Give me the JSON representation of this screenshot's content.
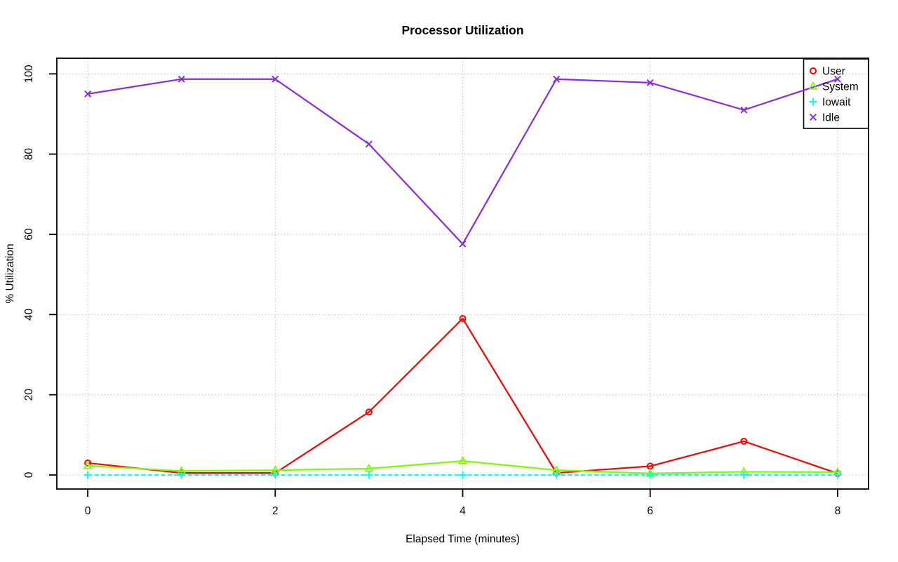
{
  "chart_data": {
    "type": "line",
    "title": "Processor Utilization",
    "xlabel": "Elapsed Time (minutes)",
    "ylabel": "% Utilization",
    "x": [
      0,
      1,
      2,
      3,
      4,
      5,
      6,
      7,
      8
    ],
    "xticks": [
      0,
      2,
      4,
      6,
      8
    ],
    "yticks": [
      0,
      20,
      40,
      60,
      80,
      100
    ],
    "xlim": [
      -0.33,
      8.33
    ],
    "ylim": [
      -3.5,
      103.9
    ],
    "grid": true,
    "grid_style": "dotted",
    "grid_color": "#bcbcbc",
    "legend_position": "topright",
    "series": [
      {
        "name": "User",
        "color": "#ff0000",
        "marker": "circle",
        "line": "solid",
        "values": [
          3.0,
          0.5,
          0.5,
          15.7,
          39.0,
          0.5,
          2.2,
          8.4,
          0.4
        ]
      },
      {
        "name": "System",
        "color": "#7cfc00",
        "marker": "triangle",
        "line": "solid",
        "values": [
          2.3,
          1.0,
          1.2,
          1.6,
          3.5,
          1.2,
          0.4,
          0.8,
          0.7
        ]
      },
      {
        "name": "Iowait",
        "color": "#00ffff",
        "marker": "plus",
        "line": "dashed",
        "values": [
          0,
          0,
          0,
          0,
          0,
          0,
          0,
          0,
          0
        ]
      },
      {
        "name": "Idle",
        "color": "#8a2be2",
        "marker": "x",
        "line": "solid",
        "values": [
          95.0,
          98.7,
          98.7,
          82.5,
          57.6,
          98.7,
          97.8,
          91.0,
          98.7
        ]
      }
    ]
  }
}
